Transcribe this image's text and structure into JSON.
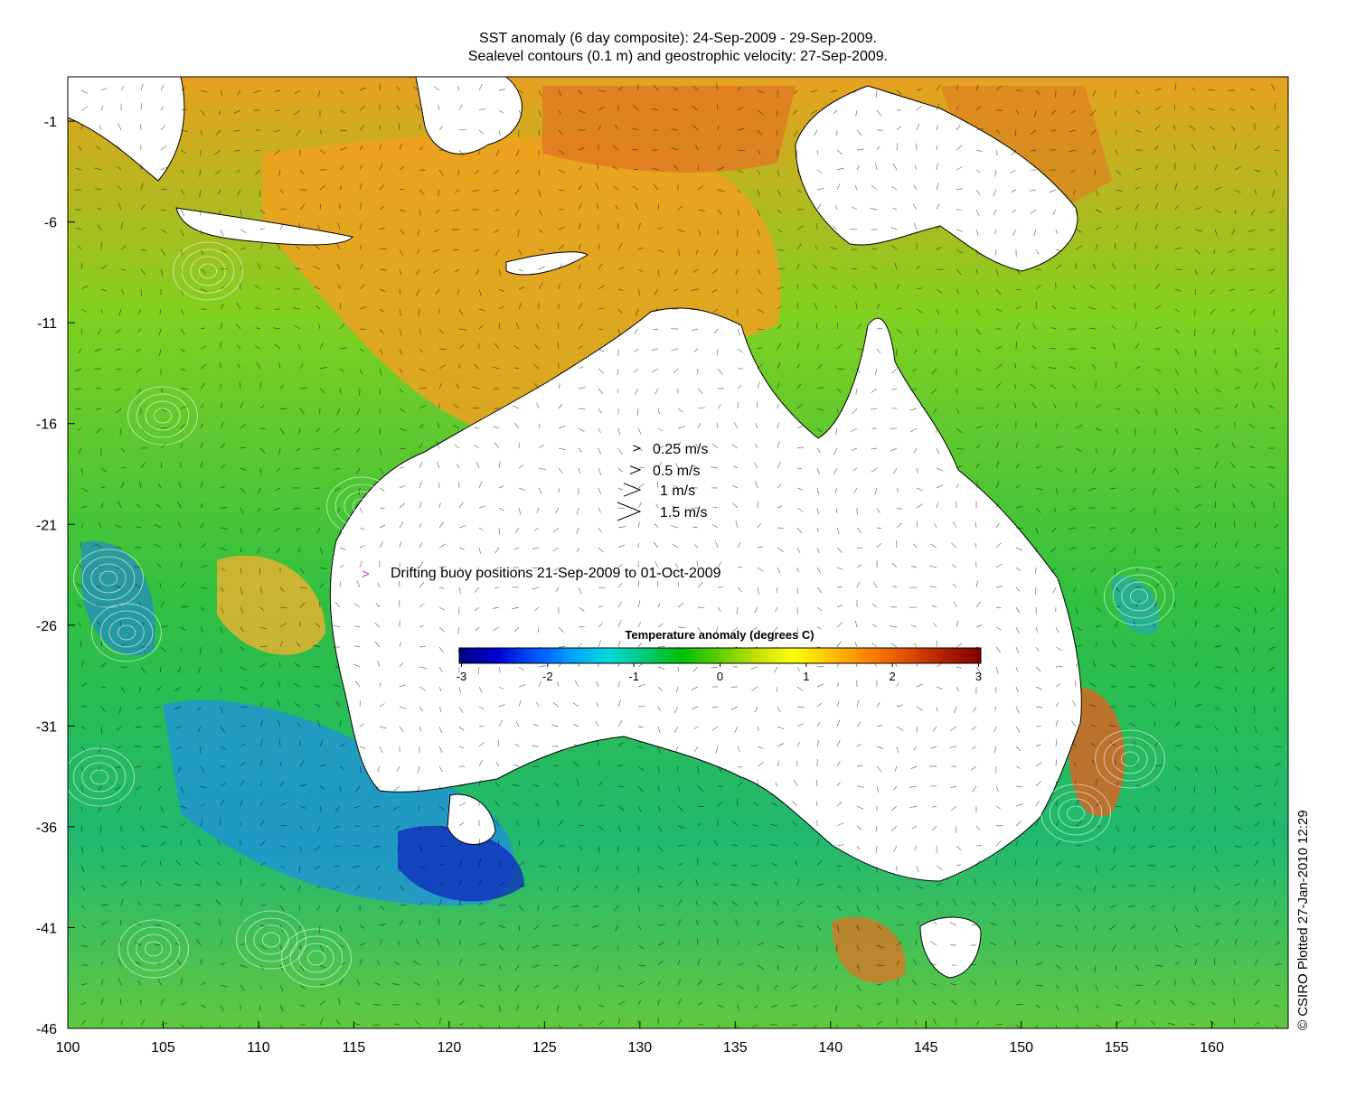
{
  "title": {
    "line1": "SST anomaly (6 day composite): 24-Sep-2009 - 29-Sep-2009.",
    "line2": "Sealevel contours (0.1 m) and geostrophic velocity: 27-Sep-2009."
  },
  "axes": {
    "x_ticks": [
      "100",
      "105",
      "110",
      "115",
      "120",
      "125",
      "130",
      "135",
      "140",
      "145",
      "150",
      "155",
      "160"
    ],
    "y_ticks": [
      "-1",
      "-6",
      "-11",
      "-16",
      "-21",
      "-26",
      "-31",
      "-36",
      "-41",
      "-46"
    ],
    "xlim": [
      100,
      164
    ],
    "ylim": [
      -46,
      1.2
    ]
  },
  "velocity_legend": [
    {
      "label": "0.25 m/s",
      "speed": 0.25
    },
    {
      "label": "0.5 m/s",
      "speed": 0.5
    },
    {
      "label": "1 m/s",
      "speed": 1
    },
    {
      "label": "1.5 m/s",
      "speed": 1.5
    }
  ],
  "buoy_legend": {
    "symbol": ">",
    "label": "Drifting buoy positions 21-Sep-2009 to 01-Oct-2009",
    "color": "#e040e0"
  },
  "colorbar": {
    "title": "Temperature anomaly (degrees C)",
    "ticks": [
      "-3",
      "-2",
      "-1",
      "0",
      "1",
      "2",
      "3"
    ],
    "range": [
      -3,
      3
    ],
    "colors": [
      "#00007f",
      "#0000d0",
      "#0050ff",
      "#00a0ff",
      "#00d8d8",
      "#00c878",
      "#00c000",
      "#60d000",
      "#c8e000",
      "#ffff00",
      "#ffc000",
      "#ff8000",
      "#e05000",
      "#b02000",
      "#800000"
    ]
  },
  "credit": "© CSIRO Plotted 27-Jan-2010 12:29"
}
